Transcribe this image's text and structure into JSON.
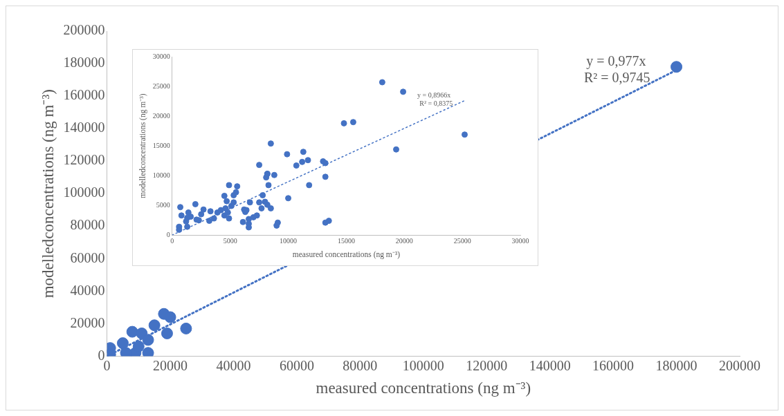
{
  "chart_data": [
    {
      "type": "scatter",
      "xlabel": "measured concentrations (ng m⁻³)",
      "ylabel": "modelledconcentrations (ng m⁻³)",
      "xlim": [
        0,
        200000
      ],
      "ylim": [
        0,
        200000
      ],
      "xticks": [
        0,
        20000,
        40000,
        60000,
        80000,
        100000,
        120000,
        140000,
        160000,
        180000,
        200000
      ],
      "yticks": [
        0,
        20000,
        40000,
        60000,
        80000,
        100000,
        120000,
        140000,
        160000,
        180000,
        200000
      ],
      "grid": false,
      "legend": false,
      "annotations": [
        "y = 0,977x",
        "R² = 0,9745"
      ],
      "series": [
        {
          "color": "#4472c4",
          "marker": "circle",
          "x": [
            1000,
            1000,
            5000,
            8000,
            11000,
            13000,
            13000,
            9000,
            10000,
            6000,
            18000,
            20000,
            15000,
            25000,
            19000,
            180000
          ],
          "values": [
            5000,
            1000,
            8000,
            15000,
            14000,
            10000,
            2000,
            2000,
            6000,
            2000,
            26000,
            24000,
            19000,
            17000,
            14000,
            178000
          ]
        },
        {
          "type": "line",
          "color": "#4472c4",
          "marker": "none",
          "line_style": "dotted",
          "x": [
            0,
            180000
          ],
          "values": [
            0,
            176000
          ]
        }
      ]
    },
    {
      "type": "scatter",
      "xlabel": "measured concentrations (ng m⁻³)",
      "ylabel": "modelledconcentrations (ng m⁻³)",
      "xlim": [
        0,
        30000
      ],
      "ylim": [
        0,
        30000
      ],
      "xticks": [
        0,
        5000,
        10000,
        15000,
        20000,
        25000,
        30000
      ],
      "yticks": [
        0,
        5000,
        10000,
        15000,
        20000,
        25000,
        30000
      ],
      "grid": false,
      "legend": false,
      "annotations": [
        "y = 0,8966x",
        "R² = 0,8375"
      ],
      "series": [
        {
          "color": "#4472c4",
          "marker": "circle",
          "x": [
            700,
            600,
            600,
            800,
            1200,
            1300,
            1300,
            1400,
            1600,
            2000,
            2100,
            2300,
            2500,
            2700,
            3200,
            3300,
            3600,
            3900,
            4200,
            4500,
            4500,
            4600,
            4700,
            4800,
            4900,
            4900,
            5100,
            5300,
            5300,
            5500,
            5600,
            6100,
            6200,
            6300,
            6400,
            6600,
            6600,
            6600,
            6700,
            7000,
            7300,
            7500,
            7500,
            7700,
            7800,
            8000,
            8100,
            8200,
            8200,
            8300,
            8200,
            8500,
            8500,
            8800,
            9000,
            9100,
            9900,
            10000,
            10700,
            11200,
            11300,
            11700,
            11800,
            13000,
            13200,
            13200,
            13200,
            13500,
            18100,
            19900,
            14800,
            15600,
            25200,
            19300
          ],
          "values": [
            4700,
            1400,
            900,
            3300,
            2300,
            2900,
            1400,
            3800,
            3100,
            5200,
            2600,
            2500,
            3500,
            4300,
            2400,
            4000,
            2800,
            3800,
            4200,
            6600,
            3300,
            4500,
            5700,
            3800,
            2800,
            8400,
            4900,
            5500,
            6700,
            7200,
            8200,
            2200,
            4300,
            3900,
            4200,
            2700,
            1900,
            1300,
            5500,
            3000,
            3300,
            11800,
            5500,
            4500,
            6700,
            5600,
            9700,
            10300,
            10300,
            8400,
            5100,
            15400,
            4500,
            10100,
            1600,
            2100,
            13600,
            6200,
            11700,
            12300,
            14000,
            12600,
            8400,
            12400,
            12100,
            9800,
            2100,
            2400,
            25700,
            24100,
            18800,
            19000,
            16900,
            14400
          ]
        },
        {
          "type": "line",
          "color": "#4472c4",
          "marker": "none",
          "line_style": "dotted",
          "x": [
            0,
            25300
          ],
          "values": [
            0,
            22700
          ]
        }
      ]
    }
  ]
}
